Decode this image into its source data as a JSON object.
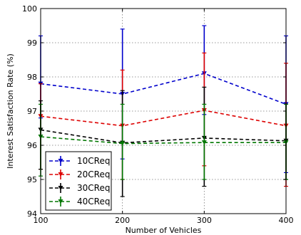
{
  "chart_data": {
    "type": "line",
    "title": "",
    "xlabel": "Number of Vehicles",
    "ylabel": "Interest Satisfaction Rate (%)",
    "x": [
      100,
      200,
      300,
      400
    ],
    "xlim": [
      100,
      400
    ],
    "ylim": [
      94,
      100
    ],
    "xticks": [
      100,
      200,
      300,
      400
    ],
    "yticks": [
      94,
      95,
      96,
      97,
      98,
      99,
      100
    ],
    "grid": true,
    "legend_position": "lower-left",
    "series": [
      {
        "name": "10CReq",
        "color": "#0000cc",
        "values": [
          97.8,
          97.5,
          98.1,
          97.2
        ],
        "err_low": [
          96.8,
          95.6,
          96.9,
          95.2
        ],
        "err_high": [
          99.2,
          99.4,
          99.5,
          99.2
        ]
      },
      {
        "name": "20CReq",
        "color": "#dd0000",
        "values": [
          96.85,
          96.57,
          97.02,
          96.57
        ],
        "err_low": [
          95.3,
          95.0,
          95.4,
          94.8
        ],
        "err_high": [
          97.8,
          98.2,
          98.7,
          98.4
        ]
      },
      {
        "name": "30CReq",
        "color": "#000000",
        "values": [
          96.45,
          96.07,
          96.21,
          96.13
        ],
        "err_low": [
          95.3,
          94.5,
          94.8,
          95.0
        ],
        "err_high": [
          97.3,
          97.6,
          97.7,
          97.2
        ]
      },
      {
        "name": "40CReq",
        "color": "#007700",
        "values": [
          96.25,
          96.05,
          96.08,
          96.08
        ],
        "err_low": [
          95.1,
          95.0,
          95.0,
          95.0
        ],
        "err_high": [
          97.2,
          97.2,
          97.2,
          97.2
        ]
      }
    ]
  }
}
